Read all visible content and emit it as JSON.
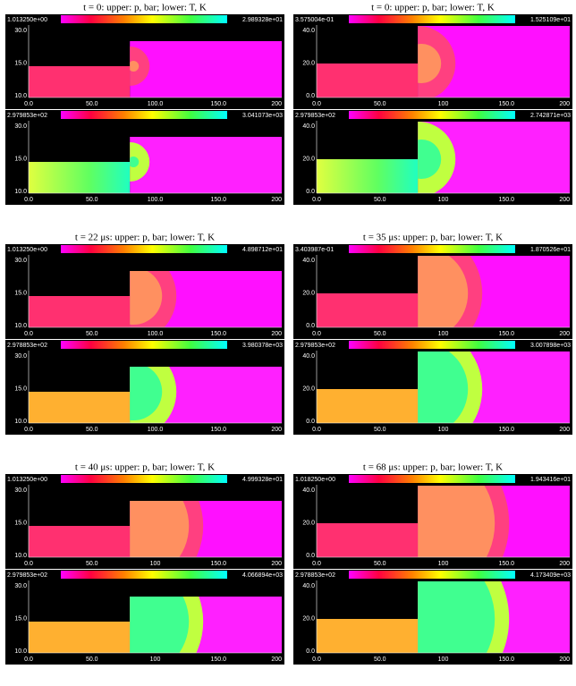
{
  "panels": [
    {
      "title": "t = 0: upper: p, bar; lower: T, K",
      "upper": {
        "min": "1.013250e+00",
        "max": "2.989328e+01"
      },
      "lower": {
        "min": "2.979853e+02",
        "max": "3.041073e+03"
      },
      "xticks": [
        "0.0",
        "50.0",
        "100.0",
        "150.0",
        "200"
      ],
      "yticks": [
        "10.0",
        "15.0",
        "30.0"
      ]
    },
    {
      "title": "t = 0: upper: p, bar; lower: T, K",
      "upper": {
        "min": "3.575004e-01",
        "max": "1.525109e+01"
      },
      "lower": {
        "min": "2.979853e+02",
        "max": "2.742871e+03"
      },
      "xticks": [
        "0.0",
        "50.0",
        "100",
        "150.0",
        "200"
      ],
      "yticks": [
        "0.0",
        "20.0",
        "40.0"
      ]
    },
    {
      "title": "t = 22 μs: upper: p, bar; lower: T, K",
      "upper": {
        "min": "1.013250e+00",
        "max": "4.898712e+01"
      },
      "lower": {
        "min": "2.978853e+02",
        "max": "3.980378e+03"
      },
      "xticks": [
        "0.0",
        "50.0",
        "100.0",
        "150.0",
        "200"
      ],
      "yticks": [
        "10.0",
        "15.0",
        "30.0"
      ]
    },
    {
      "title": "t = 35 μs: upper: p, bar; lower: T, K",
      "upper": {
        "min": "3.403987e-01",
        "max": "1.870526e+01"
      },
      "lower": {
        "min": "2.979853e+02",
        "max": "3.007898e+03"
      },
      "xticks": [
        "0.0",
        "50.0",
        "100",
        "150.0",
        "200"
      ],
      "yticks": [
        "0.0",
        "20.0",
        "40.0"
      ]
    },
    {
      "title": "t = 40 μs: upper: p, bar; lower: T, K",
      "upper": {
        "min": "1.013250e+00",
        "max": "4.999328e+01"
      },
      "lower": {
        "min": "2.979853e+02",
        "max": "4.066894e+03"
      },
      "xticks": [
        "0.0",
        "50.0",
        "100",
        "150.0",
        "200"
      ],
      "yticks": [
        "10.0",
        "15.0",
        "30.0"
      ]
    },
    {
      "title": "t = 68 μs: upper: p, bar; lower: T, K",
      "upper": {
        "min": "1.018250e+00",
        "max": "1.943416e+01"
      },
      "lower": {
        "min": "2.978853e+02",
        "max": "4.173409e+03"
      },
      "xticks": [
        "0.0",
        "50.0",
        "100",
        "150.0",
        "200"
      ],
      "yticks": [
        "0.0",
        "20.0",
        "40.0"
      ]
    }
  ]
}
